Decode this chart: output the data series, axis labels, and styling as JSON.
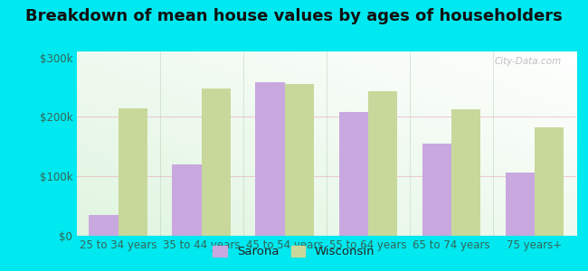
{
  "title": "Breakdown of mean house values by ages of householders",
  "categories": [
    "25 to 34 years",
    "35 to 44 years",
    "45 to 54 years",
    "55 to 64 years",
    "65 to 74 years",
    "75 years+"
  ],
  "sarona_values": [
    35000,
    120000,
    258000,
    208000,
    155000,
    107000
  ],
  "wisconsin_values": [
    215000,
    248000,
    255000,
    243000,
    212000,
    183000
  ],
  "sarona_color": "#c9a8e0",
  "wisconsin_color": "#c8d89a",
  "background_color": "#00e8f0",
  "plot_bg_color": "#dff0d8",
  "ylim": [
    0,
    310000
  ],
  "yticks": [
    0,
    100000,
    200000,
    300000
  ],
  "ytick_labels": [
    "$0",
    "$100k",
    "$200k",
    "$300k"
  ],
  "bar_width": 0.35,
  "legend_sarona": "Sarona",
  "legend_wisconsin": "Wisconsin",
  "title_fontsize": 13,
  "tick_fontsize": 8.5,
  "legend_fontsize": 9.5,
  "label_color": "#336655",
  "watermark": "City-Data.com"
}
